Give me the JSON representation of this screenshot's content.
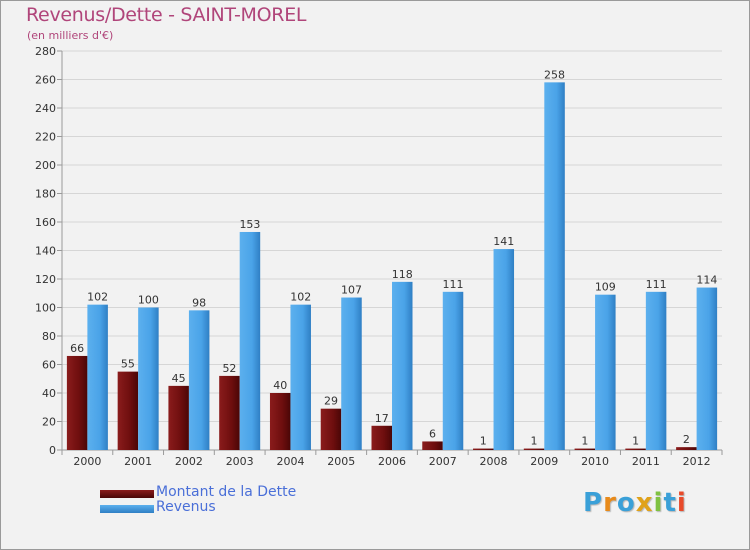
{
  "header": {
    "title": "Revenus/Dette - SAINT-MOREL",
    "subtitle": "(en milliers d'€)"
  },
  "legend": {
    "items": [
      {
        "label": "Montant de la Dette",
        "color": "#6b0d0d"
      },
      {
        "label": "Revenus",
        "color": "#4aa3e8"
      }
    ]
  },
  "logo": {
    "letters": [
      {
        "ch": "P",
        "color": "#3aa0d8"
      },
      {
        "ch": "r",
        "color": "#e88a1a"
      },
      {
        "ch": "o",
        "color": "#3aa0d8"
      },
      {
        "ch": "x",
        "color": "#e0a21a"
      },
      {
        "ch": "i",
        "color": "#7fc241"
      },
      {
        "ch": "t",
        "color": "#3aa0d8"
      },
      {
        "ch": "i",
        "color": "#e84a2a"
      }
    ]
  },
  "chart_data": {
    "type": "bar",
    "title": "Revenus/Dette - SAINT-MOREL",
    "subtitle": "(en milliers d'€)",
    "xlabel": "",
    "ylabel": "",
    "ylim": [
      0,
      280
    ],
    "yticks": [
      "0",
      "20",
      "40",
      "60",
      "80",
      "100",
      "120",
      "140",
      "160",
      "180",
      "200",
      "220",
      "240",
      "260",
      "280"
    ],
    "grid": true,
    "categories": [
      "2000",
      "2001",
      "2002",
      "2003",
      "2004",
      "2005",
      "2006",
      "2007",
      "2008",
      "2009",
      "2010",
      "2011",
      "2012"
    ],
    "series": [
      {
        "name": "Montant de la Dette",
        "color": "#7a1010",
        "values": [
          66,
          55,
          45,
          52,
          40,
          29,
          17,
          6,
          1,
          1,
          1,
          1,
          2
        ],
        "labels": [
          "66",
          "55",
          "45",
          "52",
          "40",
          "29",
          "17",
          "6",
          "1",
          "1",
          "1",
          "1",
          "2"
        ]
      },
      {
        "name": "Revenus",
        "color": "#4aa3e8",
        "values": [
          102,
          100,
          98,
          153,
          102,
          107,
          118,
          111,
          141,
          258,
          109,
          111,
          114
        ],
        "labels": [
          "102",
          "100",
          "98",
          "153",
          "102",
          "107",
          "118",
          "111",
          "141",
          "258",
          "109",
          "111",
          "114"
        ]
      }
    ],
    "legend_position": "bottom-left"
  }
}
